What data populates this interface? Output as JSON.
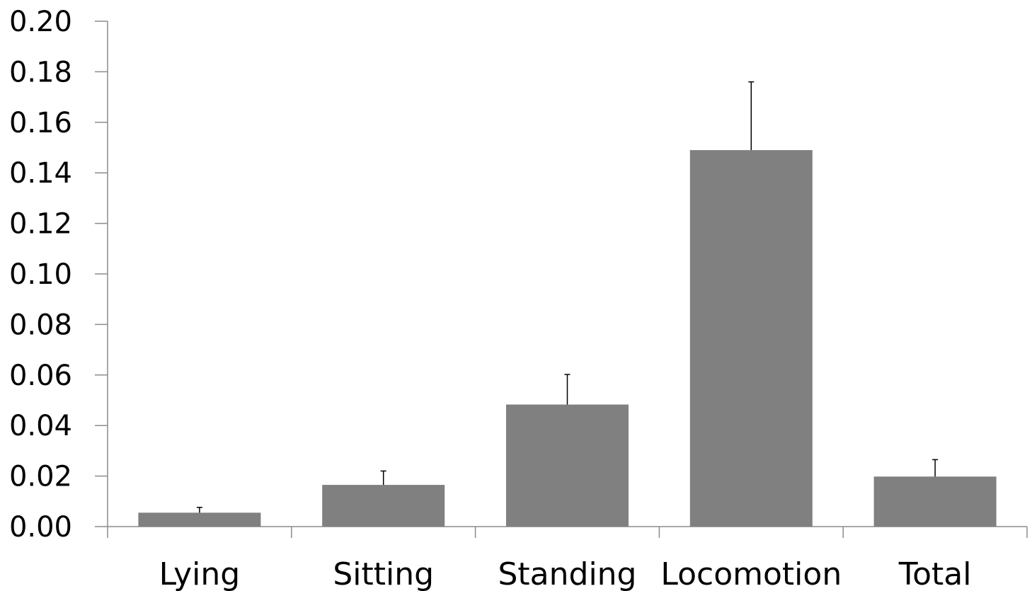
{
  "chart_data": {
    "type": "bar",
    "categories": [
      "Lying",
      "Sitting",
      "Standing",
      "Locomotion",
      "Total"
    ],
    "values": [
      0.0055,
      0.0165,
      0.0483,
      0.149,
      0.0198
    ],
    "error_upper": [
      0.0076,
      0.022,
      0.0602,
      0.176,
      0.0265
    ],
    "ylim": [
      0,
      0.2
    ],
    "yticks": [
      "0.00",
      "0.02",
      "0.04",
      "0.06",
      "0.08",
      "0.10",
      "0.12",
      "0.14",
      "0.16",
      "0.18",
      "0.20"
    ],
    "bar_color": "#808080",
    "axis_color": "#8c8c8c",
    "grid": false
  }
}
